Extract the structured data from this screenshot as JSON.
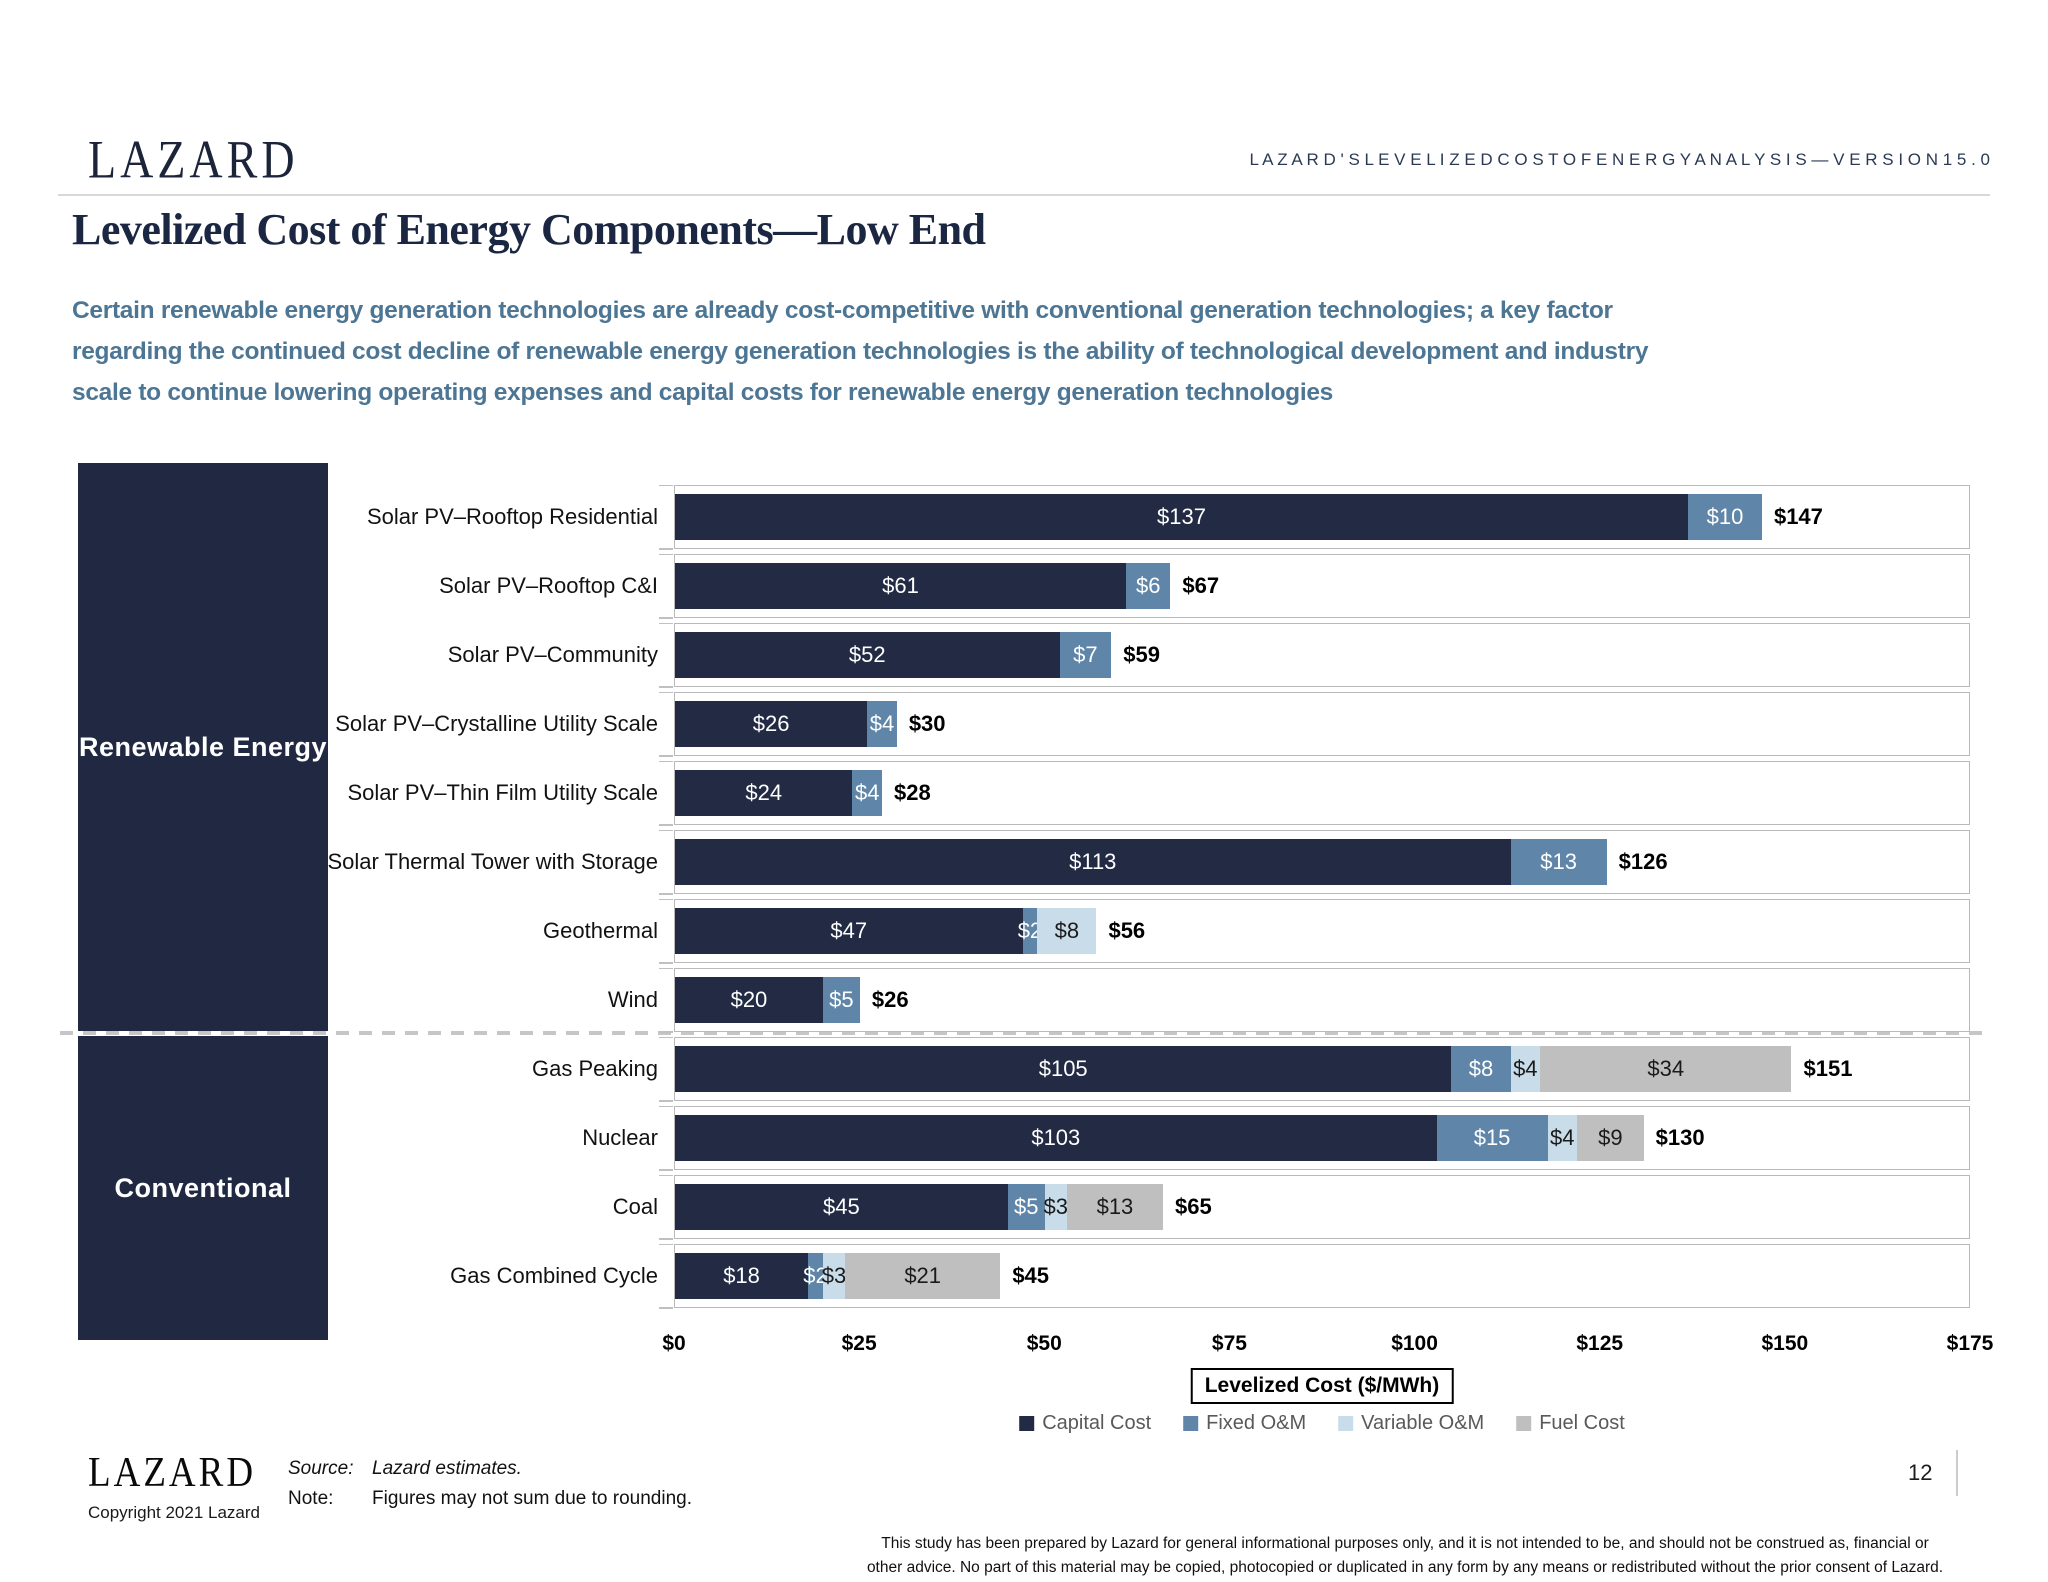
{
  "header": {
    "logo": "LAZARD",
    "tagline": "L A Z A R D ' S   L E V E L I Z E D   C O S T   O F   E N E R G Y   A N A L Y S I S — V E R S I O N   1 5 . 0"
  },
  "title": "Levelized Cost of Energy Components—Low End",
  "subtitle": {
    "lines": [
      "Certain renewable energy generation technologies are already cost-competitive with conventional generation technologies; a key factor",
      "regarding the continued cost decline of renewable energy generation technologies is the ability of technological development and industry",
      "scale to continue lowering operating expenses and capital costs for renewable energy generation technologies"
    ]
  },
  "chart_data": {
    "type": "bar",
    "orientation": "horizontal-stacked",
    "title": "",
    "xlabel": "Levelized Cost ($/MWh)",
    "ylabel": "",
    "xlim": [
      0,
      175
    ],
    "x_ticks": [
      "$0",
      "$25",
      "$50",
      "$75",
      "$100",
      "$125",
      "$150",
      "$175"
    ],
    "x_tick_values": [
      0,
      25,
      50,
      75,
      100,
      125,
      150,
      175
    ],
    "grid": false,
    "legend_position": "bottom",
    "legend": [
      {
        "name": "Capital Cost",
        "type": "capital",
        "color": "#222a44",
        "label_color": "#ffffff"
      },
      {
        "name": "Fixed O&M",
        "type": "fixed",
        "color": "#5f86a8",
        "label_color": "#ffffff"
      },
      {
        "name": "Variable O&M",
        "type": "variable",
        "color": "#c9dce9",
        "label_color": "#1a1a1a"
      },
      {
        "name": "Fuel Cost",
        "type": "fuel",
        "color": "#bfbfbf",
        "label_color": "#1a1a1a"
      }
    ],
    "groups": [
      {
        "label": "Renewable Energy",
        "row_count": 8
      },
      {
        "label": "Conventional",
        "row_count": 4
      }
    ],
    "rows": [
      {
        "category": "Solar PV–Rooftop Residential",
        "total": 147,
        "total_label": "$147",
        "segments": [
          {
            "type": "capital",
            "value": 137,
            "label": "$137"
          },
          {
            "type": "fixed",
            "value": 10,
            "label": "$10"
          }
        ]
      },
      {
        "category": "Solar PV–Rooftop C&I",
        "total": 67,
        "total_label": "$67",
        "segments": [
          {
            "type": "capital",
            "value": 61,
            "label": "$61"
          },
          {
            "type": "fixed",
            "value": 6,
            "label": "$6"
          }
        ]
      },
      {
        "category": "Solar PV–Community",
        "total": 59,
        "total_label": "$59",
        "segments": [
          {
            "type": "capital",
            "value": 52,
            "label": "$52"
          },
          {
            "type": "fixed",
            "value": 7,
            "label": "$7"
          }
        ]
      },
      {
        "category": "Solar PV–Crystalline Utility Scale",
        "total": 30,
        "total_label": "$30",
        "segments": [
          {
            "type": "capital",
            "value": 26,
            "label": "$26"
          },
          {
            "type": "fixed",
            "value": 4,
            "label": "$4"
          }
        ]
      },
      {
        "category": "Solar PV–Thin Film Utility Scale",
        "total": 28,
        "total_label": "$28",
        "segments": [
          {
            "type": "capital",
            "value": 24,
            "label": "$24"
          },
          {
            "type": "fixed",
            "value": 4,
            "label": "$4"
          }
        ]
      },
      {
        "category": "Solar Thermal Tower with Storage",
        "total": 126,
        "total_label": "$126",
        "segments": [
          {
            "type": "capital",
            "value": 113,
            "label": "$113"
          },
          {
            "type": "fixed",
            "value": 13,
            "label": "$13"
          }
        ]
      },
      {
        "category": "Geothermal",
        "total": 56,
        "total_label": "$56",
        "segments": [
          {
            "type": "capital",
            "value": 47,
            "label": "$47"
          },
          {
            "type": "fixed",
            "value": 2,
            "label": "$2"
          },
          {
            "type": "variable",
            "value": 8,
            "label": "$8"
          }
        ]
      },
      {
        "category": "Wind",
        "total": 26,
        "total_label": "$26",
        "segments": [
          {
            "type": "capital",
            "value": 20,
            "label": "$20"
          },
          {
            "type": "fixed",
            "value": 5,
            "label": "$5"
          }
        ]
      },
      {
        "category": "Gas Peaking",
        "total": 151,
        "total_label": "$151",
        "segments": [
          {
            "type": "capital",
            "value": 105,
            "label": "$105"
          },
          {
            "type": "fixed",
            "value": 8,
            "label": "$8"
          },
          {
            "type": "variable",
            "value": 4,
            "label": "$4"
          },
          {
            "type": "fuel",
            "value": 34,
            "label": "$34"
          }
        ]
      },
      {
        "category": "Nuclear",
        "total": 130,
        "total_label": "$130",
        "segments": [
          {
            "type": "capital",
            "value": 103,
            "label": "$103"
          },
          {
            "type": "fixed",
            "value": 15,
            "label": "$15"
          },
          {
            "type": "variable",
            "value": 4,
            "label": "$4"
          },
          {
            "type": "fuel",
            "value": 9,
            "label": "$9"
          }
        ]
      },
      {
        "category": "Coal",
        "total": 65,
        "total_label": "$65",
        "segments": [
          {
            "type": "capital",
            "value": 45,
            "label": "$45"
          },
          {
            "type": "fixed",
            "value": 5,
            "label": "$5"
          },
          {
            "type": "variable",
            "value": 3,
            "label": "$3"
          },
          {
            "type": "fuel",
            "value": 13,
            "label": "$13"
          }
        ]
      },
      {
        "category": "Gas Combined Cycle",
        "total": 45,
        "total_label": "$45",
        "segments": [
          {
            "type": "capital",
            "value": 18,
            "label": "$18"
          },
          {
            "type": "fixed",
            "value": 2,
            "label": "$2"
          },
          {
            "type": "variable",
            "value": 3,
            "label": "$3"
          },
          {
            "type": "fuel",
            "value": 21,
            "label": "$21"
          }
        ]
      }
    ]
  },
  "footer": {
    "logo": "LAZARD",
    "copyright": "Copyright 2021 Lazard",
    "source_label": "Source:",
    "source_text": "Lazard estimates.",
    "note_label": "Note:",
    "note_text": "Figures may not sum due to rounding.",
    "page_number": "12",
    "disclaimer_lines": [
      "This study has been prepared by Lazard for general informational purposes only, and it is not intended to be, and should not be construed as, financial or",
      "other advice. No part of this material may be copied, photocopied or duplicated in any form by any means or redistributed without the prior consent of Lazard."
    ]
  },
  "colors": {
    "accent_navy": "#222a44",
    "steel_blue": "#5f86a8",
    "light_blue": "#c9dce9",
    "fuel_gray": "#bfbfbf",
    "subtitle_blue": "#4d7694",
    "cell_border": "#b9b9b9"
  }
}
